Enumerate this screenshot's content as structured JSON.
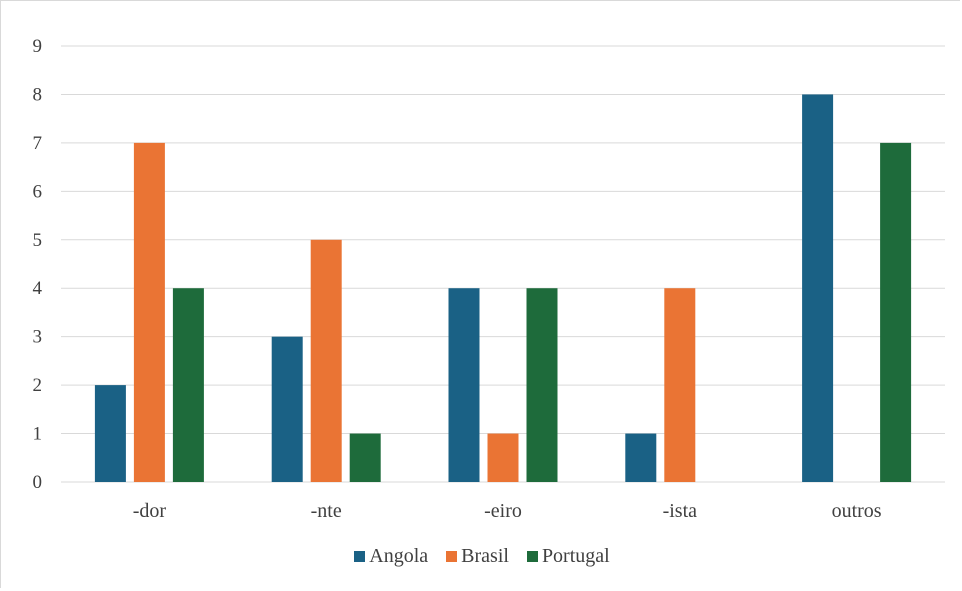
{
  "chart_data": {
    "type": "bar",
    "categories": [
      "-dor",
      "-nte",
      "-eiro",
      "-ista",
      "outros"
    ],
    "series": [
      {
        "name": "Angola",
        "values": [
          2,
          3,
          4,
          1,
          8
        ],
        "color": "#1a6185"
      },
      {
        "name": "Brasil",
        "values": [
          7,
          5,
          1,
          4,
          0
        ],
        "color": "#ea7434"
      },
      {
        "name": "Portugal",
        "values": [
          4,
          1,
          4,
          0,
          7
        ],
        "color": "#1e6b3b"
      }
    ],
    "y_ticks": [
      "0",
      "1",
      "2",
      "3",
      "4",
      "5",
      "6",
      "7",
      "8",
      "9"
    ],
    "ylim": [
      0,
      9
    ],
    "grid": true,
    "legend_position": "bottom",
    "gridline_color": "#d9d9d9"
  }
}
